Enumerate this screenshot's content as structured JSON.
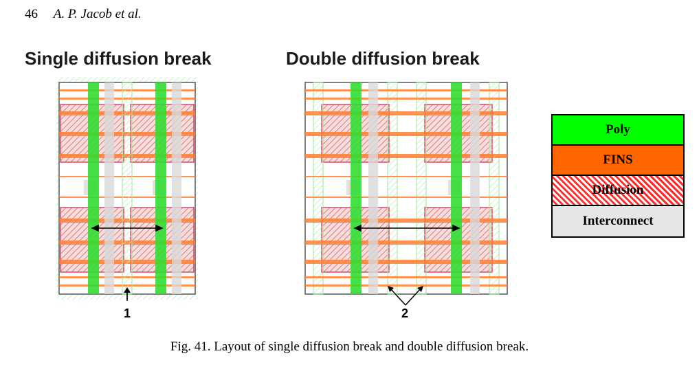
{
  "header": {
    "page_number": "46",
    "authors": "A. P. Jacob et al."
  },
  "diagrams": [
    {
      "title": "Single diffusion break",
      "marker": "1"
    },
    {
      "title": "Double diffusion break",
      "marker": "2"
    }
  ],
  "legend": {
    "items": [
      {
        "label": "Poly",
        "color": "#00ff00",
        "pattern": "solid"
      },
      {
        "label": "FINS",
        "color": "#ff6600",
        "pattern": "solid"
      },
      {
        "label": "Diffusion",
        "color": "#ff3333",
        "pattern": "hatched"
      },
      {
        "label": "Interconnect",
        "color": "#e6e6e6",
        "pattern": "solid"
      }
    ]
  },
  "caption": "Fig. 41. Layout of single diffusion break and double diffusion break."
}
